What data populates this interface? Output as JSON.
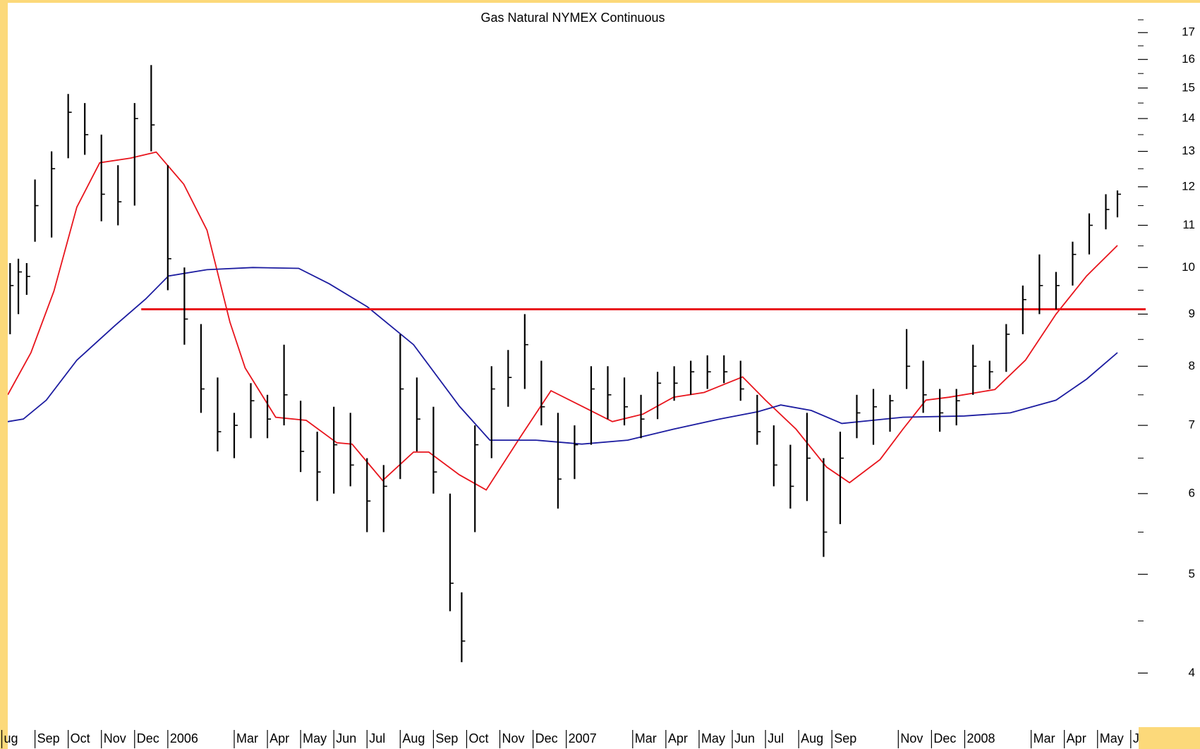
{
  "chart_data": {
    "type": "ohlc",
    "title": "Gas Natural NYMEX Continuous",
    "log_scale": true,
    "bar_color": "#000000",
    "x": [
      0.25,
      0.5,
      0.75,
      1.0,
      1.5,
      2.0,
      2.5,
      3.0,
      3.5,
      4.0,
      4.5,
      5.0,
      5.5,
      6.0,
      6.5,
      7.0,
      7.5,
      8.0,
      8.5,
      9.0,
      9.5,
      10.0,
      10.5,
      11.0,
      11.5,
      12.0,
      12.5,
      13.0,
      13.5,
      13.85,
      14.25,
      14.75,
      15.25,
      15.75,
      16.25,
      16.75,
      17.25,
      17.75,
      18.25,
      18.75,
      19.25,
      19.75,
      20.25,
      20.75,
      21.25,
      21.75,
      22.25,
      22.75,
      23.25,
      23.75,
      24.25,
      24.75,
      25.25,
      25.75,
      26.25,
      26.75,
      27.25,
      27.75,
      28.25,
      28.75,
      29.25,
      29.75,
      30.25,
      30.75,
      31.25,
      31.75,
      32.25,
      32.75,
      33.25,
      33.6
    ],
    "high": [
      10.1,
      10.2,
      10.1,
      12.2,
      13.0,
      14.8,
      14.5,
      13.5,
      12.6,
      14.5,
      15.8,
      12.6,
      10.0,
      8.8,
      7.8,
      7.2,
      7.7,
      7.5,
      8.4,
      7.4,
      6.9,
      7.3,
      7.2,
      6.5,
      6.4,
      8.6,
      7.8,
      7.3,
      6.0,
      4.8,
      7.0,
      8.0,
      8.3,
      9.0,
      8.1,
      7.2,
      7.0,
      8.0,
      8.0,
      7.8,
      7.5,
      7.9,
      8.0,
      8.1,
      8.2,
      8.2,
      8.1,
      7.5,
      7.0,
      6.7,
      7.2,
      6.5,
      6.9,
      7.5,
      7.6,
      7.5,
      8.7,
      8.1,
      7.6,
      7.6,
      8.4,
      8.1,
      8.8,
      9.6,
      10.3,
      9.9,
      10.6,
      11.3,
      11.8,
      11.9
    ],
    "low": [
      8.6,
      9.0,
      9.4,
      10.6,
      10.7,
      12.8,
      12.9,
      11.1,
      11.0,
      11.5,
      13.0,
      9.5,
      8.4,
      7.2,
      6.6,
      6.5,
      6.8,
      6.8,
      7.0,
      6.3,
      5.9,
      6.0,
      6.1,
      5.5,
      5.5,
      6.2,
      6.6,
      6.0,
      4.6,
      4.1,
      5.5,
      6.5,
      7.3,
      7.6,
      7.0,
      5.8,
      6.2,
      6.7,
      7.1,
      7.0,
      6.8,
      7.1,
      7.4,
      7.5,
      7.6,
      7.7,
      7.4,
      6.7,
      6.1,
      5.8,
      5.9,
      5.2,
      5.6,
      6.8,
      6.7,
      6.9,
      7.6,
      7.2,
      6.9,
      7.0,
      7.5,
      7.6,
      7.9,
      8.6,
      9.0,
      9.1,
      9.6,
      10.3,
      10.9,
      11.2
    ],
    "close": [
      9.6,
      9.9,
      9.8,
      11.5,
      12.5,
      14.2,
      13.5,
      11.8,
      11.6,
      14.0,
      13.8,
      10.2,
      8.9,
      7.6,
      6.9,
      7.0,
      7.4,
      7.1,
      7.5,
      6.6,
      6.3,
      6.7,
      6.4,
      5.9,
      6.1,
      7.6,
      7.1,
      6.3,
      4.9,
      4.3,
      6.7,
      7.6,
      7.8,
      8.4,
      7.3,
      6.2,
      6.7,
      7.6,
      7.5,
      7.3,
      7.1,
      7.7,
      7.7,
      7.9,
      7.9,
      7.9,
      7.6,
      6.9,
      6.4,
      6.1,
      6.5,
      5.5,
      6.5,
      7.2,
      7.3,
      7.4,
      8.0,
      7.5,
      7.2,
      7.4,
      8.0,
      7.9,
      8.6,
      9.3,
      9.6,
      9.6,
      10.3,
      11.0,
      11.4,
      11.8
    ],
    "overlays": [
      {
        "color": "#e8141c",
        "x": [
          0.18,
          0.88,
          1.57,
          2.26,
          2.95,
          3.87,
          4.65,
          5.48,
          6.18,
          6.87,
          7.33,
          8.25,
          9.17,
          10.09,
          10.55,
          11.47,
          12.4,
          12.86,
          13.78,
          14.59,
          15.62,
          16.54,
          17.47,
          18.39,
          19.31,
          20.23,
          21.15,
          22.31,
          23.0,
          23.92,
          24.84,
          25.53,
          26.45,
          27.14,
          27.83,
          28.53,
          29.91,
          30.83,
          31.75,
          32.67,
          33.6
        ],
        "values": [
          7.5,
          8.25,
          9.48,
          11.46,
          12.67,
          12.8,
          12.98,
          12.07,
          10.88,
          8.84,
          7.97,
          7.13,
          7.08,
          6.73,
          6.71,
          6.18,
          6.59,
          6.59,
          6.26,
          6.05,
          6.82,
          7.57,
          7.31,
          7.06,
          7.18,
          7.46,
          7.54,
          7.81,
          7.41,
          6.94,
          6.37,
          6.15,
          6.48,
          6.94,
          7.41,
          7.46,
          7.59,
          8.11,
          9.0,
          9.81,
          10.51
        ]
      },
      {
        "color": "#1c1ca0",
        "x": [
          0.18,
          0.65,
          1.34,
          2.26,
          3.41,
          4.33,
          5.02,
          6.18,
          7.56,
          8.94,
          9.86,
          11.01,
          12.4,
          13.78,
          14.7,
          16.08,
          17.47,
          18.85,
          20.23,
          21.61,
          22.77,
          23.46,
          24.38,
          25.3,
          26.22,
          27.14,
          28.99,
          30.37,
          31.75,
          32.67,
          33.6
        ],
        "values": [
          7.06,
          7.1,
          7.41,
          8.11,
          8.77,
          9.31,
          9.81,
          9.95,
          10.0,
          9.98,
          9.64,
          9.15,
          8.4,
          7.31,
          6.77,
          6.77,
          6.71,
          6.77,
          6.94,
          7.1,
          7.22,
          7.33,
          7.24,
          7.03,
          7.08,
          7.13,
          7.15,
          7.2,
          7.41,
          7.77,
          8.25
        ]
      }
    ],
    "hline": {
      "value": 9.1,
      "from": 4.2,
      "color": "#e8141c"
    },
    "xlim": [
      0.18,
      34.45
    ],
    "xticks": [
      {
        "value": 0,
        "label": "ug"
      },
      {
        "value": 1,
        "label": "Sep"
      },
      {
        "value": 2,
        "label": "Oct"
      },
      {
        "value": 3,
        "label": "Nov"
      },
      {
        "value": 4,
        "label": "Dec"
      },
      {
        "value": 5,
        "label": "2006"
      },
      {
        "value": 7,
        "label": "Mar"
      },
      {
        "value": 8,
        "label": "Apr"
      },
      {
        "value": 9,
        "label": "May"
      },
      {
        "value": 10,
        "label": "Jun"
      },
      {
        "value": 11,
        "label": "Jul"
      },
      {
        "value": 12,
        "label": "Aug"
      },
      {
        "value": 13,
        "label": "Sep"
      },
      {
        "value": 14,
        "label": "Oct"
      },
      {
        "value": 15,
        "label": "Nov"
      },
      {
        "value": 16,
        "label": "Dec"
      },
      {
        "value": 17,
        "label": "2007"
      },
      {
        "value": 19,
        "label": "Mar"
      },
      {
        "value": 20,
        "label": "Apr"
      },
      {
        "value": 21,
        "label": "May"
      },
      {
        "value": 22,
        "label": "Jun"
      },
      {
        "value": 23,
        "label": "Jul"
      },
      {
        "value": 24,
        "label": "Aug"
      },
      {
        "value": 25,
        "label": "Sep"
      },
      {
        "value": 27,
        "label": "Nov"
      },
      {
        "value": 28,
        "label": "Dec"
      },
      {
        "value": 29,
        "label": "2008"
      },
      {
        "value": 31,
        "label": "Mar"
      },
      {
        "value": 32,
        "label": "Apr"
      },
      {
        "value": 33,
        "label": "May"
      },
      {
        "value": 34,
        "label": "J"
      }
    ],
    "ylim": [
      3.54,
      18.3
    ],
    "yticks": [
      4,
      5,
      6,
      7,
      8,
      9,
      10,
      11,
      12,
      13,
      14,
      15,
      16,
      17
    ],
    "yminorticks": [
      4.5,
      5.5,
      6.5,
      7.5,
      8.5,
      9.5,
      10.5,
      11.5,
      12.5,
      13.5,
      14.5,
      15.5,
      16.5,
      17.5
    ]
  }
}
